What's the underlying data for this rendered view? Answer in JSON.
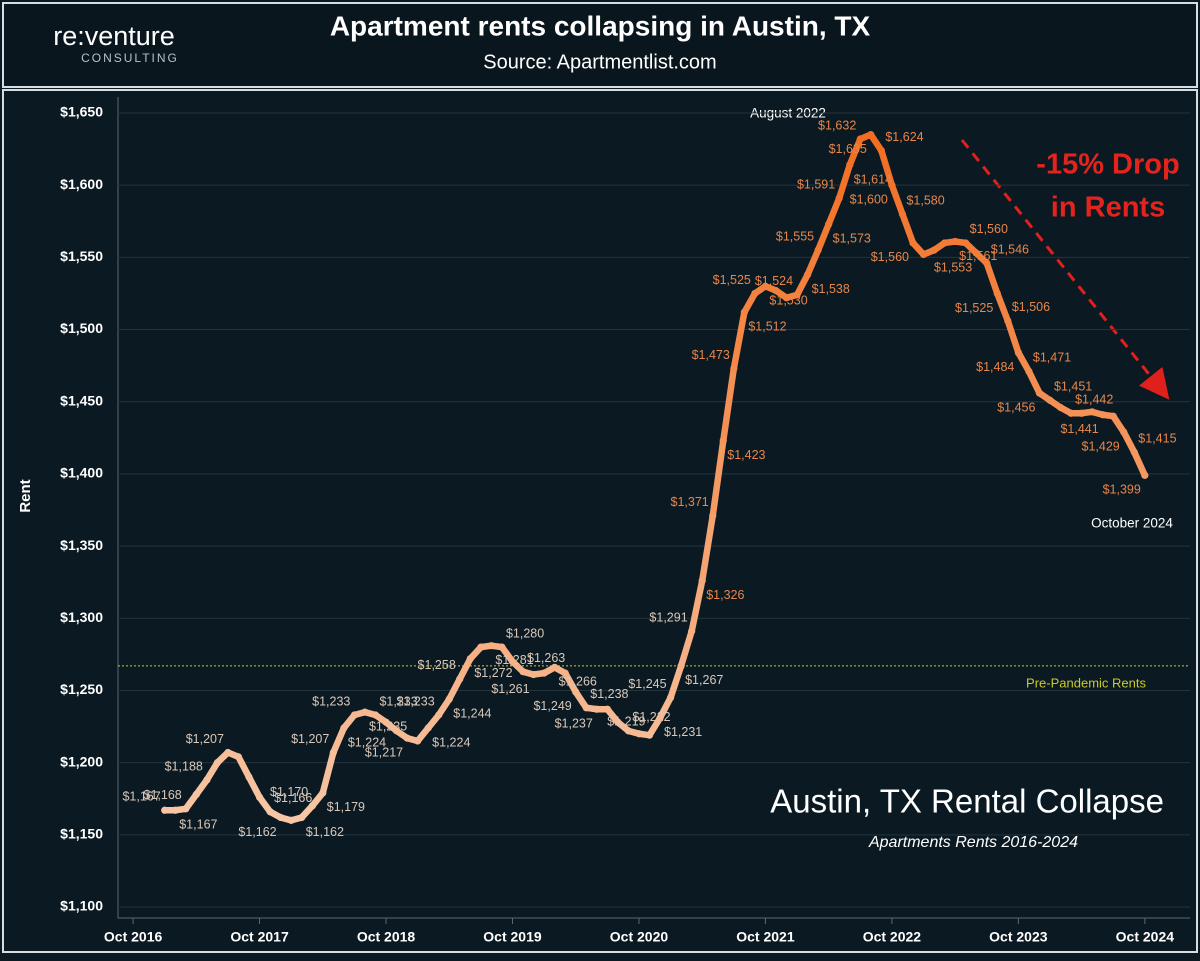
{
  "chart_data": {
    "type": "line",
    "title": "Apartment rents collapsing in Austin, TX",
    "subtitle": "Source: Apartmentlist.com",
    "logo": {
      "name": "re:venture",
      "tagline": "CONSULTING"
    },
    "ylabel": "Rent",
    "inset_title": "Austin, TX Rental Collapse",
    "inset_subtitle": "Apartments Rents  2016-2024",
    "annotations": [
      "August 2022",
      "October 2024",
      "-15% Drop",
      "in Rents"
    ],
    "reference_line": {
      "value": 1267,
      "label": "Pre-Pandemic Rents",
      "color": "#c9c92a"
    },
    "colors": {
      "low": "#f8d2b6",
      "high": "#f26a1c"
    },
    "grid": true,
    "xlim": [
      "2016-08",
      "2025-02"
    ],
    "xticks": [
      {
        "value": "2016-10",
        "label": "Oct 2016"
      },
      {
        "value": "2017-10",
        "label": "Oct 2017"
      },
      {
        "value": "2018-10",
        "label": "Oct 2018"
      },
      {
        "value": "2019-10",
        "label": "Oct 2019"
      },
      {
        "value": "2020-10",
        "label": "Oct 2020"
      },
      {
        "value": "2021-10",
        "label": "Oct 2021"
      },
      {
        "value": "2022-10",
        "label": "Oct 2022"
      },
      {
        "value": "2023-10",
        "label": "Oct 2023"
      },
      {
        "value": "2024-10",
        "label": "Oct 2024"
      }
    ],
    "ylim": [
      1100,
      1650
    ],
    "yticks": [
      {
        "value": 1100,
        "label": "$1,100"
      },
      {
        "value": 1150,
        "label": "$1,150"
      },
      {
        "value": 1200,
        "label": "$1,200"
      },
      {
        "value": 1250,
        "label": "$1,250"
      },
      {
        "value": 1300,
        "label": "$1,300"
      },
      {
        "value": 1350,
        "label": "$1,350"
      },
      {
        "value": 1400,
        "label": "$1,400"
      },
      {
        "value": 1450,
        "label": "$1,450"
      },
      {
        "value": 1500,
        "label": "$1,500"
      },
      {
        "value": 1550,
        "label": "$1,550"
      },
      {
        "value": 1600,
        "label": "$1,600"
      },
      {
        "value": 1650,
        "label": "$1,650"
      }
    ],
    "x": [
      "2017-01",
      "2017-02",
      "2017-03",
      "2017-04",
      "2017-05",
      "2017-06",
      "2017-07",
      "2017-08",
      "2017-09",
      "2017-10",
      "2017-11",
      "2017-12",
      "2018-01",
      "2018-02",
      "2018-03",
      "2018-04",
      "2018-05",
      "2018-06",
      "2018-07",
      "2018-08",
      "2018-09",
      "2018-10",
      "2018-11",
      "2018-12",
      "2019-01",
      "2019-02",
      "2019-03",
      "2019-04",
      "2019-05",
      "2019-06",
      "2019-07",
      "2019-08",
      "2019-09",
      "2019-10",
      "2019-11",
      "2019-12",
      "2020-01",
      "2020-02",
      "2020-03",
      "2020-04",
      "2020-05",
      "2020-06",
      "2020-07",
      "2020-08",
      "2020-09",
      "2020-10",
      "2020-11",
      "2020-12",
      "2021-01",
      "2021-02",
      "2021-03",
      "2021-04",
      "2021-05",
      "2021-06",
      "2021-07",
      "2021-08",
      "2021-09",
      "2021-10",
      "2021-11",
      "2021-12",
      "2022-01",
      "2022-02",
      "2022-03",
      "2022-04",
      "2022-05",
      "2022-06",
      "2022-07",
      "2022-08",
      "2022-09",
      "2022-10",
      "2022-11",
      "2022-12",
      "2023-01",
      "2023-02",
      "2023-03",
      "2023-04",
      "2023-05",
      "2023-06",
      "2023-07",
      "2023-08",
      "2023-09",
      "2023-10",
      "2023-11",
      "2023-12",
      "2024-01",
      "2024-02",
      "2024-03",
      "2024-04",
      "2024-05",
      "2024-06",
      "2024-07",
      "2024-08",
      "2024-09",
      "2024-10"
    ],
    "values": [
      1167,
      1167,
      1168,
      1178,
      1188,
      1200,
      1207,
      1204,
      1190,
      1176,
      1166,
      1162,
      1160,
      1162,
      1170,
      1179,
      1207,
      1224,
      1233,
      1235,
      1233,
      1228,
      1222,
      1217,
      1215,
      1224,
      1233,
      1244,
      1258,
      1272,
      1280,
      1281,
      1280,
      1270,
      1263,
      1261,
      1262,
      1266,
      1262,
      1249,
      1238,
      1237,
      1237,
      1228,
      1222,
      1220,
      1219,
      1231,
      1245,
      1267,
      1291,
      1326,
      1371,
      1423,
      1473,
      1512,
      1525,
      1530,
      1527,
      1522,
      1524,
      1538,
      1555,
      1573,
      1591,
      1614,
      1632,
      1635,
      1624,
      1600,
      1580,
      1560,
      1552,
      1555,
      1560,
      1561,
      1560,
      1553,
      1546,
      1525,
      1506,
      1484,
      1471,
      1456,
      1451,
      1446,
      1442,
      1442,
      1443,
      1441,
      1440,
      1429,
      1415,
      1399
    ],
    "value_labels": [
      "$1,167",
      "$1,167",
      "$1,168",
      null,
      "$1,188",
      null,
      "$1,207",
      null,
      null,
      null,
      "$1,166",
      "$1,162",
      null,
      "$1,162",
      "$1,170",
      "$1,179",
      "$1,207",
      "$1,224",
      "$1,233",
      "$1,235",
      "$1,233",
      null,
      null,
      "$1,217",
      null,
      "$1,224",
      "$1,233",
      "$1,244",
      "$1,258",
      "$1,272",
      null,
      "$1,281",
      "$1,280",
      null,
      "$1,263",
      "$1,261",
      null,
      "$1,266",
      null,
      "$1,249",
      "$1,238",
      "$1,237",
      null,
      null,
      "$1,222",
      null,
      "$1,219",
      "$1,231",
      "$1,245",
      "$1,267",
      "$1,291",
      "$1,326",
      "$1,371",
      "$1,423",
      "$1,473",
      "$1,512",
      "$1,525",
      "$1,530",
      null,
      null,
      "$1,524",
      "$1,538",
      "$1,555",
      "$1,573",
      "$1,591",
      "$1,614",
      "$1,632",
      "$1,635",
      "$1,624",
      "$1,600",
      "$1,580",
      "$1,560",
      null,
      null,
      null,
      "$1,561",
      "$1,560",
      "$1,553",
      "$1,546",
      "$1,525",
      "$1,506",
      "$1,484",
      "$1,471",
      "$1,456",
      "$1,451",
      null,
      "$1,442",
      null,
      null,
      "$1,441",
      null,
      "$1,429",
      "$1,415",
      "$1,399"
    ]
  }
}
